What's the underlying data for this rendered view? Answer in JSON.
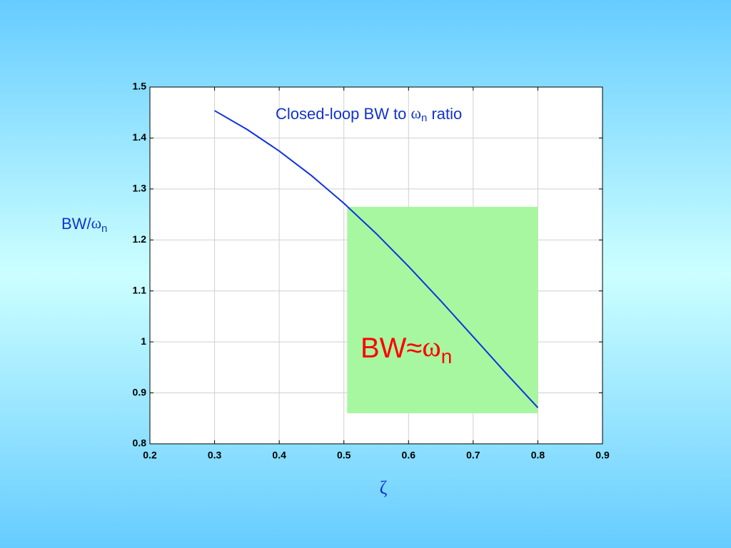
{
  "chart_data": {
    "type": "line",
    "title": {
      "text": "Closed-loop BW to ",
      "symbol": "ω",
      "sub": "n",
      "end": " ratio"
    },
    "x_label": "ζ",
    "y_label": {
      "text": "BW/",
      "symbol": "ω",
      "sub": "n"
    },
    "annotation": {
      "text": "BW≈",
      "symbol": "ω",
      "sub": "n",
      "color": "#ff0000"
    },
    "highlight": {
      "xlim": [
        0.505,
        0.8
      ],
      "ylim": [
        0.86,
        1.265
      ],
      "color": "#a6f7a0"
    },
    "x": [
      0.3,
      0.35,
      0.4,
      0.45,
      0.5,
      0.55,
      0.6,
      0.65,
      0.7,
      0.75,
      0.8
    ],
    "series": [
      {
        "color": "#1133dd",
        "values": [
          1.4537,
          1.417,
          1.3745,
          1.3261,
          1.272,
          1.2125,
          1.1482,
          1.0803,
          1.0101,
          0.9396,
          0.8709
        ]
      }
    ],
    "xlim": [
      0.2,
      0.9
    ],
    "ylim": [
      0.8,
      1.5
    ],
    "xticks": [
      0.2,
      0.3,
      0.4,
      0.5,
      0.6,
      0.7,
      0.8,
      0.9
    ],
    "yticks": [
      0.8,
      0.9,
      1,
      1.1,
      1.2,
      1.3,
      1.4,
      1.5
    ],
    "grid": true
  }
}
